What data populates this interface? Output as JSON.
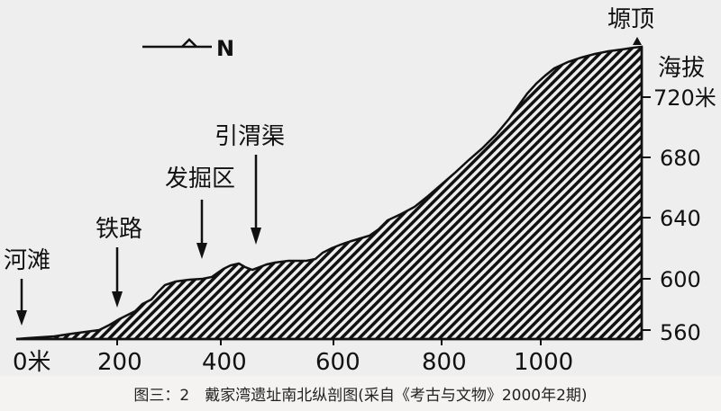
{
  "figure": {
    "north_label": "N",
    "elevation_title": "海拔",
    "elevation_ticks": [
      "720米",
      "680",
      "640",
      "600",
      "560"
    ],
    "distance_ticks": [
      "0米",
      "200",
      "400",
      "600",
      "800",
      "1000"
    ],
    "annotations": {
      "river_beach": "河滩",
      "railway": "铁路",
      "excavation_area": "发掘区",
      "canal": "引渭渠",
      "summit": "塬顶"
    },
    "colors": {
      "profile_stroke": "#111111",
      "hatch": "#111111",
      "background": "#eeeeee"
    }
  },
  "caption": "图三：2　戴家湾遗址南北纵剖图(采自《考古与文物》2000年2期)"
}
